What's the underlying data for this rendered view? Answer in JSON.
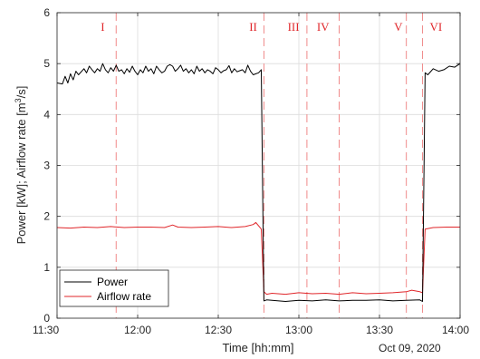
{
  "chart_data": {
    "type": "line",
    "xlabel": "Time [hh:mm]",
    "ylabel": "Power [kW]; Airflow rate [m",
    "ylabel_sup": "3",
    "ylabel_tail": "/s]",
    "date_label": "Oct 09, 2020",
    "xlim": [
      "11:30",
      "14:00"
    ],
    "ylim": [
      0,
      6
    ],
    "xticks": [
      "11:30",
      "12:00",
      "12:30",
      "13:00",
      "13:30",
      "14:00"
    ],
    "yticks": [
      0,
      1,
      2,
      3,
      4,
      5,
      6
    ],
    "grid": true,
    "legend_position": "bottom-left",
    "phase_lines": [
      "11:52",
      "12:47",
      "13:03",
      "13:15",
      "13:40",
      "13:46"
    ],
    "phase_labels": [
      {
        "label": "I",
        "x": "11:47"
      },
      {
        "label": "II",
        "x": "12:43"
      },
      {
        "label": "III",
        "x": "12:58"
      },
      {
        "label": "IV",
        "x": "13:09"
      },
      {
        "label": "V",
        "x": "13:37"
      },
      {
        "label": "VI",
        "x": "13:51"
      }
    ],
    "series": [
      {
        "name": "Power",
        "color": "#000000",
        "x": [
          "11:30",
          "11:32",
          "11:33",
          "11:34",
          "11:35",
          "11:36",
          "11:37",
          "11:38",
          "11:40",
          "11:41",
          "11:42",
          "11:43",
          "11:44",
          "11:45",
          "11:46",
          "11:47",
          "11:48",
          "11:49",
          "11:50",
          "11:51",
          "11:52",
          "11:53",
          "11:54",
          "11:55",
          "11:56",
          "11:57",
          "11:58",
          "11:59",
          "12:00",
          "12:01",
          "12:02",
          "12:03",
          "12:04",
          "12:05",
          "12:06",
          "12:07",
          "12:08",
          "12:09",
          "12:10",
          "12:11",
          "12:12",
          "12:13",
          "12:14",
          "12:15",
          "12:16",
          "12:17",
          "12:18",
          "12:19",
          "12:20",
          "12:21",
          "12:22",
          "12:23",
          "12:24",
          "12:25",
          "12:26",
          "12:27",
          "12:28",
          "12:29",
          "12:30",
          "12:31",
          "12:32",
          "12:33",
          "12:34",
          "12:35",
          "12:36",
          "12:37",
          "12:38",
          "12:39",
          "12:40",
          "12:41",
          "12:42",
          "12:43",
          "12:44",
          "12:45",
          "12:46",
          "12:47",
          "12:48",
          "12:50",
          "12:55",
          "13:00",
          "13:05",
          "13:10",
          "13:15",
          "13:20",
          "13:25",
          "13:30",
          "13:35",
          "13:40",
          "13:45",
          "13:46",
          "13:47",
          "13:48",
          "13:50",
          "13:52",
          "13:54",
          "13:56",
          "13:58",
          "14:00"
        ],
        "values": [
          4.62,
          4.6,
          4.75,
          4.62,
          4.8,
          4.68,
          4.85,
          4.78,
          4.9,
          4.82,
          4.95,
          4.88,
          4.82,
          4.9,
          4.85,
          5.0,
          4.88,
          4.82,
          4.92,
          4.85,
          4.97,
          4.85,
          4.88,
          4.8,
          4.9,
          4.83,
          4.95,
          4.85,
          4.78,
          4.88,
          4.82,
          4.95,
          4.85,
          4.9,
          4.8,
          4.95,
          4.88,
          4.82,
          4.85,
          4.95,
          4.98,
          4.95,
          4.85,
          4.9,
          4.97,
          4.85,
          4.9,
          4.82,
          4.88,
          4.8,
          4.95,
          4.85,
          4.9,
          4.82,
          4.88,
          4.85,
          4.8,
          4.92,
          4.88,
          4.82,
          4.86,
          4.88,
          4.96,
          4.82,
          4.9,
          4.84,
          4.86,
          4.88,
          4.82,
          4.97,
          4.85,
          4.78,
          4.8,
          4.82,
          4.88,
          0.34,
          0.36,
          0.35,
          0.33,
          0.35,
          0.34,
          0.36,
          0.34,
          0.35,
          0.35,
          0.36,
          0.34,
          0.35,
          0.36,
          0.33,
          4.82,
          4.78,
          4.9,
          4.85,
          4.88,
          4.95,
          4.93,
          5.0
        ]
      },
      {
        "name": "Airflow rate",
        "color": "#e0262a",
        "x": [
          "11:30",
          "11:35",
          "11:40",
          "11:45",
          "11:50",
          "11:55",
          "12:00",
          "12:05",
          "12:10",
          "12:13",
          "12:15",
          "12:20",
          "12:25",
          "12:30",
          "12:35",
          "12:40",
          "12:43",
          "12:44",
          "12:46",
          "12:47",
          "12:48",
          "12:50",
          "12:55",
          "13:00",
          "13:05",
          "13:10",
          "13:15",
          "13:20",
          "13:25",
          "13:30",
          "13:35",
          "13:40",
          "13:42",
          "13:45",
          "13:46",
          "13:47",
          "13:50",
          "13:55",
          "14:00"
        ],
        "values": [
          1.78,
          1.77,
          1.79,
          1.78,
          1.8,
          1.78,
          1.79,
          1.79,
          1.78,
          1.83,
          1.79,
          1.78,
          1.79,
          1.8,
          1.78,
          1.8,
          1.84,
          1.88,
          1.75,
          0.52,
          0.47,
          0.49,
          0.47,
          0.5,
          0.48,
          0.49,
          0.47,
          0.5,
          0.48,
          0.49,
          0.5,
          0.52,
          0.55,
          0.52,
          0.5,
          1.75,
          1.78,
          1.79,
          1.79
        ]
      }
    ]
  }
}
